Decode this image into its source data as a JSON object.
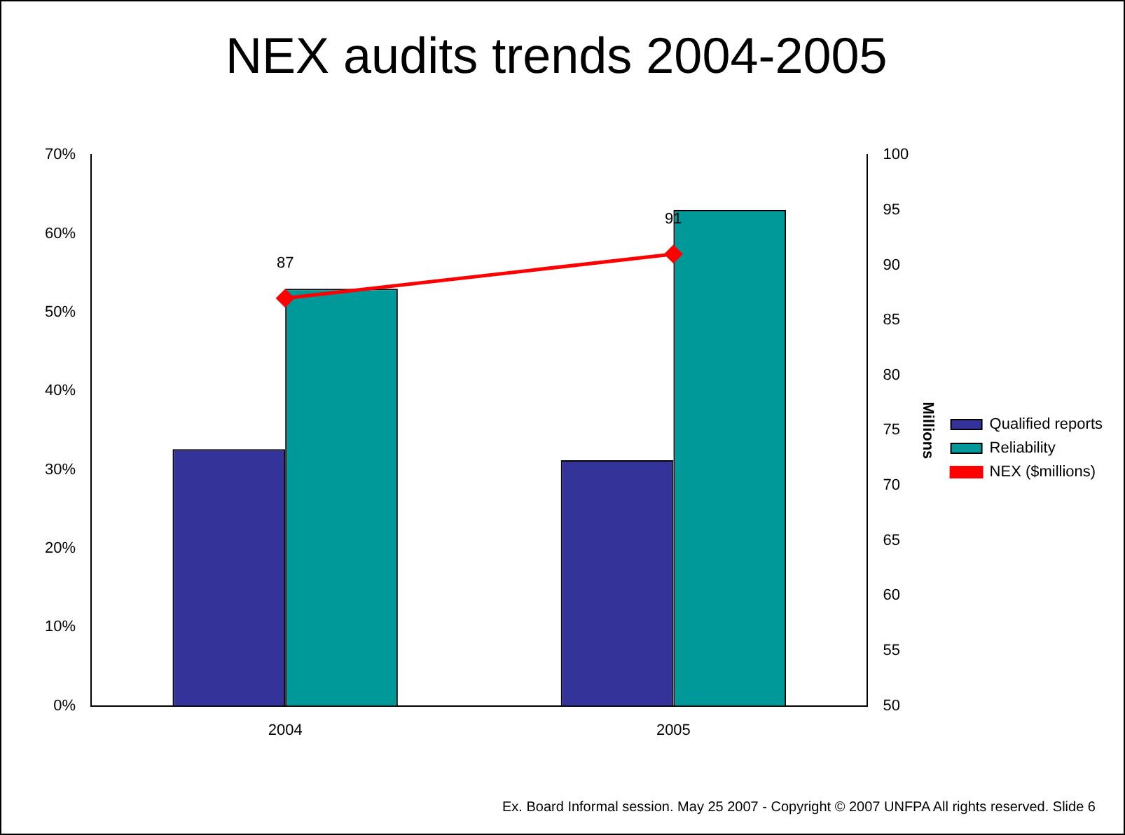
{
  "chart_data": {
    "type": "bar",
    "title": "NEX audits trends 2004-2005",
    "categories": [
      "2004",
      "2005"
    ],
    "series": [
      {
        "name": "Qualified reports",
        "type": "bar",
        "color": "#333399",
        "values": [
          32.6,
          31.2
        ]
      },
      {
        "name": "Reliability",
        "type": "bar",
        "color": "#009999",
        "values": [
          53,
          63
        ]
      },
      {
        "name": "NEX ($millions)",
        "type": "line",
        "axis": "y2",
        "color": "#ff0000",
        "values": [
          87,
          91
        ],
        "value_labels": [
          "87",
          "91"
        ]
      }
    ],
    "ylim": [
      0,
      70
    ],
    "yticks": [
      {
        "value": 0,
        "label": "0%"
      },
      {
        "value": 10,
        "label": "10%"
      },
      {
        "value": 20,
        "label": "20%"
      },
      {
        "value": 30,
        "label": "30%"
      },
      {
        "value": 40,
        "label": "40%"
      },
      {
        "value": 50,
        "label": "50%"
      },
      {
        "value": 60,
        "label": "60%"
      },
      {
        "value": 70,
        "label": "70%"
      }
    ],
    "y2lim": [
      50,
      100
    ],
    "y2ticks": [
      50,
      55,
      60,
      65,
      70,
      75,
      80,
      85,
      90,
      95,
      100
    ],
    "y2label": "Millions",
    "marker": "diamond",
    "grid": false,
    "legend": "right",
    "annotations": [
      "Ex. Board Informal session. May 25 2007 - Copyright © 2007 UNFPA All rights reserved. Slide 6"
    ]
  }
}
